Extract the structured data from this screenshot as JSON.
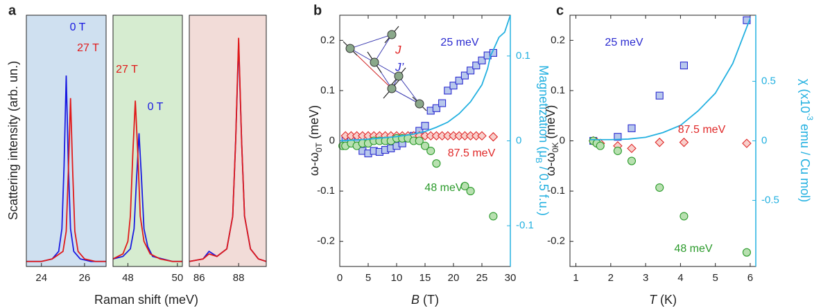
{
  "chart_data": [
    {
      "type": "line",
      "panel": "a",
      "ylabel": "Scattering intensity (arb. un.)",
      "xlabel": "Raman shift (meV)",
      "background": "#cfe0f0",
      "xlim": [
        23.3,
        27
      ],
      "xticks": [
        24,
        26
      ],
      "ylim": [
        0,
        1
      ],
      "series": [
        {
          "name": "0 T",
          "color": "#1a1ae0",
          "x": [
            23.3,
            24.0,
            24.5,
            24.8,
            24.95,
            25.05,
            25.15,
            25.25,
            25.35,
            25.5,
            25.8,
            26.3,
            27
          ],
          "values": [
            0.02,
            0.02,
            0.03,
            0.06,
            0.15,
            0.4,
            0.76,
            0.4,
            0.15,
            0.06,
            0.03,
            0.02,
            0.02
          ]
        },
        {
          "name": "27 T",
          "color": "#e01a1a",
          "x": [
            23.3,
            24.0,
            24.5,
            25.0,
            25.15,
            25.25,
            25.35,
            25.45,
            25.55,
            25.7,
            26.0,
            26.5,
            27
          ],
          "values": [
            0.02,
            0.02,
            0.03,
            0.06,
            0.14,
            0.38,
            0.67,
            0.38,
            0.14,
            0.06,
            0.03,
            0.02,
            0.02
          ]
        }
      ]
    },
    {
      "type": "line",
      "background": "#d6ecd0",
      "xlim": [
        47.4,
        50.2
      ],
      "xticks": [
        48,
        50
      ],
      "ylim": [
        0,
        1
      ],
      "series": [
        {
          "name": "0 T",
          "color": "#1a1ae0",
          "x": [
            47.4,
            47.8,
            48.1,
            48.25,
            48.35,
            48.45,
            48.55,
            48.65,
            48.8,
            49.0,
            49.4,
            49.8,
            50.2
          ],
          "values": [
            0.03,
            0.04,
            0.07,
            0.15,
            0.35,
            0.53,
            0.35,
            0.15,
            0.08,
            0.04,
            0.03,
            0.02,
            0.02
          ]
        },
        {
          "name": "27 T",
          "color": "#e01a1a",
          "x": [
            47.4,
            47.8,
            48.0,
            48.1,
            48.2,
            48.3,
            48.4,
            48.5,
            48.65,
            48.9,
            49.3,
            49.8,
            50.2
          ],
          "values": [
            0.03,
            0.05,
            0.1,
            0.2,
            0.45,
            0.66,
            0.45,
            0.2,
            0.1,
            0.05,
            0.03,
            0.02,
            0.02
          ]
        }
      ]
    },
    {
      "type": "line",
      "background": "#f2dcd8",
      "xlim": [
        85.5,
        89.4
      ],
      "xticks": [
        86,
        88
      ],
      "ylim": [
        0,
        1
      ],
      "series": [
        {
          "color": "#1a1ae0",
          "x": [
            85.5,
            86.2,
            86.5,
            86.9,
            87.4,
            87.7,
            87.85,
            88.0,
            88.15,
            88.3,
            88.6,
            89.0,
            89.4
          ],
          "values": [
            0.02,
            0.03,
            0.06,
            0.04,
            0.07,
            0.2,
            0.5,
            0.89,
            0.5,
            0.2,
            0.07,
            0.03,
            0.02
          ]
        },
        {
          "color": "#e01a1a",
          "x": [
            85.5,
            86.2,
            86.5,
            86.9,
            87.4,
            87.7,
            87.85,
            88.0,
            88.15,
            88.3,
            88.6,
            89.0,
            89.4
          ],
          "values": [
            0.02,
            0.03,
            0.05,
            0.04,
            0.07,
            0.2,
            0.5,
            0.91,
            0.5,
            0.2,
            0.07,
            0.03,
            0.02
          ]
        }
      ]
    },
    {
      "type": "scatter",
      "panel": "b",
      "ylabel": {
        "text": "ω-ω",
        "sub": "0T",
        "suffix": " (meV)"
      },
      "y2label": {
        "text": "Magnetization (μ",
        "sub": "B",
        "suffix": " / 0.5 f.u.)"
      },
      "xlabel": {
        "var": "B",
        "suffix": " (T)"
      },
      "inset_labels": [
        "J",
        "J’"
      ],
      "xlim": [
        0,
        30
      ],
      "xticks": [
        0,
        5,
        10,
        15,
        20,
        25,
        30
      ],
      "ylim": [
        -0.25,
        0.25
      ],
      "yticks": [
        -0.2,
        -0.1,
        0,
        0.1,
        0.2
      ],
      "y2lim": [
        -0.148,
        0.148
      ],
      "y2ticks": [
        -0.1,
        0,
        0.1
      ],
      "y2color": "#22b0e0",
      "series": [
        {
          "name": "25 meV",
          "color": "#2a2ad0",
          "fill": "#b8c8ec",
          "marker": "square",
          "x": [
            1,
            2,
            3,
            4,
            5,
            6,
            7,
            8,
            9,
            10,
            11,
            12,
            13,
            14,
            15,
            16,
            17,
            18,
            19,
            20,
            21,
            22,
            23,
            24,
            25,
            26,
            27
          ],
          "values": [
            0,
            0,
            -0.005,
            -0.02,
            -0.025,
            -0.02,
            -0.022,
            -0.018,
            -0.015,
            -0.01,
            -0.005,
            0.005,
            0.01,
            0.02,
            0.03,
            0.06,
            0.065,
            0.075,
            0.1,
            0.11,
            0.12,
            0.13,
            0.14,
            0.15,
            0.16,
            0.17,
            0.175
          ]
        },
        {
          "name": "87.5 meV",
          "color": "#e02828",
          "fill": "#f8d0cc",
          "marker": "diamond",
          "x": [
            1,
            2,
            3,
            4,
            5,
            6,
            7,
            8,
            9,
            10,
            11,
            12,
            13,
            14,
            15,
            16,
            17,
            18,
            19,
            20,
            21,
            22,
            23,
            24,
            25,
            27
          ],
          "values": [
            0.01,
            0.01,
            0.01,
            0.01,
            0.01,
            0.01,
            0.01,
            0.01,
            0.01,
            0.01,
            0.01,
            0.01,
            0.01,
            0.01,
            0.01,
            0.01,
            0.01,
            0.01,
            0.01,
            0.01,
            0.01,
            0.01,
            0.01,
            0.01,
            0.01,
            0.008
          ]
        },
        {
          "name": "48 meV",
          "color": "#2a9a2a",
          "fill": "#b8e0b0",
          "marker": "circle",
          "x": [
            0.5,
            1,
            2,
            3,
            4,
            5,
            6,
            7,
            8,
            9,
            10,
            11,
            12,
            13,
            14,
            15,
            16,
            17,
            22,
            23,
            27
          ],
          "values": [
            -0.01,
            -0.01,
            -0.005,
            -0.01,
            -0.005,
            -0.005,
            0,
            0,
            0,
            0,
            0.005,
            0.005,
            0.005,
            0,
            0,
            -0.01,
            -0.02,
            -0.045,
            -0.09,
            -0.1,
            -0.15
          ]
        },
        {
          "color": "#22b0e0",
          "marker": "line",
          "axis": "y2",
          "x": [
            0,
            5,
            10,
            13,
            15,
            17,
            19,
            21,
            23,
            25,
            26,
            26.5,
            27,
            28,
            29,
            30
          ],
          "values": [
            0,
            0.002,
            0.005,
            0.008,
            0.011,
            0.016,
            0.022,
            0.032,
            0.046,
            0.066,
            0.085,
            0.1,
            0.107,
            0.122,
            0.128,
            0.148
          ]
        }
      ]
    },
    {
      "type": "scatter",
      "panel": "c",
      "ylabel": {
        "text": "ω-ω",
        "sub": "0K",
        "suffix": " (meV)"
      },
      "y2label": {
        "text": "χ (x10",
        "sup": "-3",
        "suffix": " emu / Cu mol)"
      },
      "xlabel": {
        "var": "T",
        "suffix": " (K)"
      },
      "xlim": [
        0.83,
        6.16
      ],
      "xticks": [
        1,
        2,
        3,
        4,
        5,
        6
      ],
      "ylim": [
        -0.25,
        0.25
      ],
      "yticks": [
        -0.2,
        -0.1,
        0,
        0.1,
        0.2
      ],
      "y2lim": [
        -1.055,
        1.055
      ],
      "y2ticks": [
        -0.5,
        0,
        0.5
      ],
      "y2color": "#22b0e0",
      "series": [
        {
          "name": "25 meV",
          "color": "#2a2ad0",
          "fill": "#b8c8ec",
          "marker": "square",
          "x": [
            1.5,
            2.2,
            2.6,
            3.4,
            4.1,
            5.9
          ],
          "values": [
            0,
            0.008,
            0.025,
            0.09,
            0.15,
            0.24
          ]
        },
        {
          "name": "87.5 meV",
          "color": "#e02828",
          "fill": "#f8d0cc",
          "marker": "diamond",
          "x": [
            1.5,
            1.6,
            1.7,
            2.2,
            2.6,
            3.4,
            4.1,
            5.9
          ],
          "values": [
            0,
            -0.003,
            -0.005,
            -0.01,
            -0.015,
            -0.003,
            -0.003,
            -0.005
          ]
        },
        {
          "name": "48 meV",
          "color": "#2a9a2a",
          "fill": "#b8e0b0",
          "marker": "circle",
          "x": [
            1.5,
            1.6,
            1.7,
            2.2,
            2.6,
            3.4,
            4.1,
            5.9
          ],
          "values": [
            0,
            -0.005,
            -0.01,
            -0.02,
            -0.04,
            -0.093,
            -0.15,
            -0.222
          ]
        },
        {
          "color": "#22b0e0",
          "marker": "line",
          "axis": "y2",
          "x": [
            1.4,
            2,
            2.5,
            3,
            3.5,
            4,
            4.5,
            5,
            5.5,
            6
          ],
          "values": [
            0.01,
            0.01,
            0.015,
            0.03,
            0.07,
            0.13,
            0.25,
            0.4,
            0.65,
            1.03
          ]
        }
      ]
    }
  ]
}
